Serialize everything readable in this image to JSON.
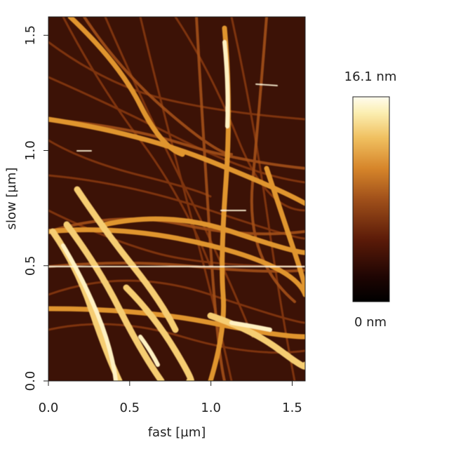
{
  "chart_data": {
    "type": "heatmap",
    "title": "",
    "xlabel": "fast [µm]",
    "ylabel": "slow [µm]",
    "xlim": [
      0,
      1.58
    ],
    "ylim": [
      0,
      1.58
    ],
    "x_ticks": [
      "0.0",
      "0.5",
      "1.0",
      "1.5"
    ],
    "y_ticks": [
      "0.0",
      "0.5",
      "1.0",
      "1.5"
    ],
    "colorbar": {
      "max_label": "16.1 nm",
      "min_label": "0 nm",
      "min": 0,
      "max": 16.1,
      "unit": "nm",
      "colors": [
        "#000000",
        "#3a0a05",
        "#7a2a0a",
        "#c0661a",
        "#e8a33a",
        "#f6de8a",
        "#fffbe8"
      ]
    },
    "image_background": "#4a1a08"
  }
}
